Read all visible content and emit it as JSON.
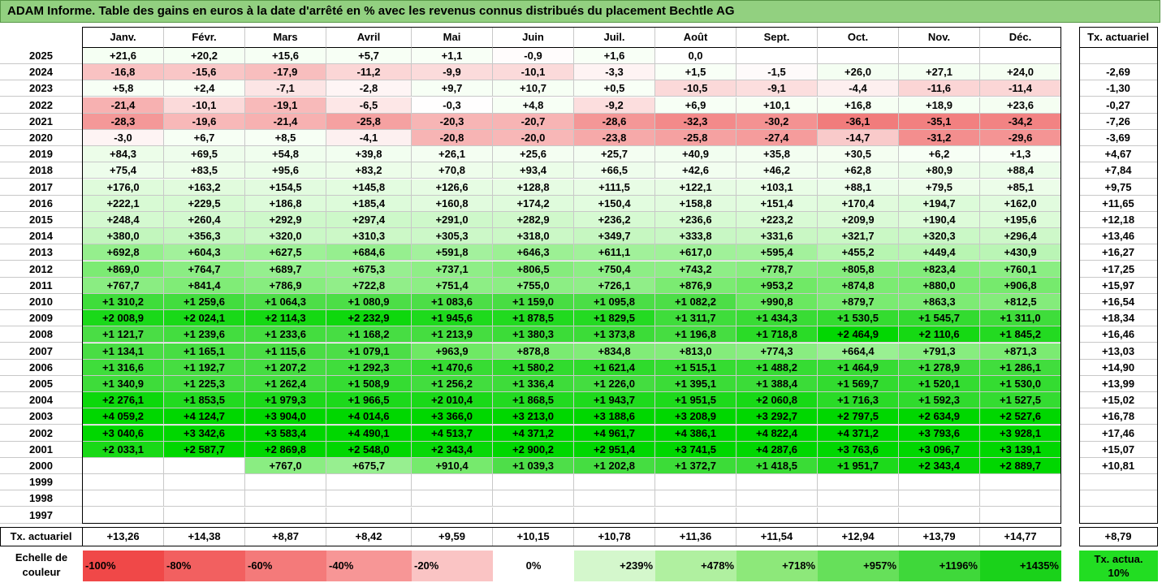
{
  "title": "ADAM Informe. Table des gains en euros à la date d'arrêté en % avec les revenus connus distribués du placement Bechtle AG",
  "months": [
    "Janv.",
    "Févr.",
    "Mars",
    "Avril",
    "Mai",
    "Juin",
    "Juil.",
    "Août",
    "Sept.",
    "Oct.",
    "Nov.",
    "Déc."
  ],
  "rate_header": "Tx. actuariel",
  "footer_label": "Tx. actuariel",
  "chart_data": {
    "type": "table",
    "rows": [
      {
        "year": "2025",
        "values": [
          "+21,6",
          "+20,2",
          "+15,6",
          "+5,7",
          "+1,1",
          "-0,9",
          "+1,6",
          "0,0",
          "",
          "",
          "",
          ""
        ],
        "rate": ""
      },
      {
        "year": "2024",
        "values": [
          "-16,8",
          "-15,6",
          "-17,9",
          "-11,2",
          "-9,9",
          "-10,1",
          "-3,3",
          "+1,5",
          "-1,5",
          "+26,0",
          "+27,1",
          "+24,0"
        ],
        "rate": "-2,69"
      },
      {
        "year": "2023",
        "values": [
          "+5,8",
          "+2,4",
          "-7,1",
          "-2,8",
          "+9,7",
          "+10,7",
          "+0,5",
          "-10,5",
          "-9,1",
          "-4,4",
          "-11,6",
          "-11,4"
        ],
        "rate": "-1,30"
      },
      {
        "year": "2022",
        "values": [
          "-21,4",
          "-10,1",
          "-19,1",
          "-6,5",
          "-0,3",
          "+4,8",
          "-9,2",
          "+6,9",
          "+10,1",
          "+16,8",
          "+18,9",
          "+23,6"
        ],
        "rate": "-0,27"
      },
      {
        "year": "2021",
        "values": [
          "-28,3",
          "-19,6",
          "-21,4",
          "-25,8",
          "-20,3",
          "-20,7",
          "-28,6",
          "-32,3",
          "-30,2",
          "-36,1",
          "-35,1",
          "-34,2"
        ],
        "rate": "-7,26"
      },
      {
        "year": "2020",
        "values": [
          "-3,0",
          "+6,7",
          "+8,5",
          "-4,1",
          "-20,8",
          "-20,0",
          "-23,8",
          "-25,8",
          "-27,4",
          "-14,7",
          "-31,2",
          "-29,6"
        ],
        "rate": "-3,69"
      },
      {
        "year": "2019",
        "values": [
          "+84,3",
          "+69,5",
          "+54,8",
          "+39,8",
          "+26,1",
          "+25,6",
          "+25,7",
          "+40,9",
          "+35,8",
          "+30,5",
          "+6,2",
          "+1,3"
        ],
        "rate": "+4,67"
      },
      {
        "year": "2018",
        "values": [
          "+75,4",
          "+83,5",
          "+95,6",
          "+83,2",
          "+70,8",
          "+93,4",
          "+66,5",
          "+42,6",
          "+46,2",
          "+62,8",
          "+80,9",
          "+88,4"
        ],
        "rate": "+7,84"
      },
      {
        "year": "2017",
        "values": [
          "+176,0",
          "+163,2",
          "+154,5",
          "+145,8",
          "+126,6",
          "+128,8",
          "+111,5",
          "+122,1",
          "+103,1",
          "+88,1",
          "+79,5",
          "+85,1"
        ],
        "rate": "+9,75"
      },
      {
        "year": "2016",
        "values": [
          "+222,1",
          "+229,5",
          "+186,8",
          "+185,4",
          "+160,8",
          "+174,2",
          "+150,4",
          "+158,8",
          "+151,4",
          "+170,4",
          "+194,7",
          "+162,0"
        ],
        "rate": "+11,65"
      },
      {
        "year": "2015",
        "values": [
          "+248,4",
          "+260,4",
          "+292,9",
          "+297,4",
          "+291,0",
          "+282,9",
          "+236,2",
          "+236,6",
          "+223,2",
          "+209,9",
          "+190,4",
          "+195,6"
        ],
        "rate": "+12,18"
      },
      {
        "year": "2014",
        "values": [
          "+380,0",
          "+356,3",
          "+320,0",
          "+310,3",
          "+305,3",
          "+318,0",
          "+349,7",
          "+333,8",
          "+331,6",
          "+321,7",
          "+320,3",
          "+296,4"
        ],
        "rate": "+13,46"
      },
      {
        "year": "2013",
        "values": [
          "+692,8",
          "+604,3",
          "+627,5",
          "+684,6",
          "+591,8",
          "+646,3",
          "+611,1",
          "+617,0",
          "+595,4",
          "+455,2",
          "+449,4",
          "+430,9"
        ],
        "rate": "+16,27"
      },
      {
        "year": "2012",
        "values": [
          "+869,0",
          "+764,7",
          "+689,7",
          "+675,3",
          "+737,1",
          "+806,5",
          "+750,4",
          "+743,2",
          "+778,7",
          "+805,8",
          "+823,4",
          "+760,1"
        ],
        "rate": "+17,25"
      },
      {
        "year": "2011",
        "values": [
          "+767,7",
          "+841,4",
          "+786,9",
          "+722,8",
          "+751,4",
          "+755,0",
          "+726,1",
          "+876,9",
          "+953,2",
          "+874,8",
          "+880,0",
          "+906,8"
        ],
        "rate": "+15,97"
      },
      {
        "year": "2010",
        "values": [
          "+1 310,2",
          "+1 259,6",
          "+1 064,3",
          "+1 080,9",
          "+1 083,6",
          "+1 159,0",
          "+1 095,8",
          "+1 082,2",
          "+990,8",
          "+879,7",
          "+863,3",
          "+812,5"
        ],
        "rate": "+16,54"
      },
      {
        "year": "2009",
        "values": [
          "+2 008,9",
          "+2 024,1",
          "+2 114,3",
          "+2 232,9",
          "+1 945,6",
          "+1 878,5",
          "+1 829,5",
          "+1 311,7",
          "+1 434,3",
          "+1 530,5",
          "+1 545,7",
          "+1 311,0"
        ],
        "rate": "+18,34"
      },
      {
        "year": "2008",
        "values": [
          "+1 121,7",
          "+1 239,6",
          "+1 233,6",
          "+1 168,2",
          "+1 213,9",
          "+1 380,3",
          "+1 373,8",
          "+1 196,8",
          "+1 718,8",
          "+2 464,9",
          "+2 110,6",
          "+1 845,2"
        ],
        "rate": "+16,46"
      },
      {
        "year": "2007",
        "values": [
          "+1 134,1",
          "+1 165,1",
          "+1 115,6",
          "+1 079,1",
          "+963,9",
          "+878,8",
          "+834,8",
          "+813,0",
          "+774,3",
          "+664,4",
          "+791,3",
          "+871,3"
        ],
        "rate": "+13,03"
      },
      {
        "year": "2006",
        "values": [
          "+1 316,6",
          "+1 192,7",
          "+1 207,2",
          "+1 292,3",
          "+1 470,6",
          "+1 580,2",
          "+1 621,4",
          "+1 515,1",
          "+1 488,2",
          "+1 464,9",
          "+1 278,9",
          "+1 286,1"
        ],
        "rate": "+14,90"
      },
      {
        "year": "2005",
        "values": [
          "+1 340,9",
          "+1 225,3",
          "+1 262,4",
          "+1 508,9",
          "+1 256,2",
          "+1 336,4",
          "+1 226,0",
          "+1 395,1",
          "+1 388,4",
          "+1 569,7",
          "+1 520,1",
          "+1 530,0"
        ],
        "rate": "+13,99"
      },
      {
        "year": "2004",
        "values": [
          "+2 276,1",
          "+1 853,5",
          "+1 979,3",
          "+1 966,5",
          "+2 010,4",
          "+1 868,5",
          "+1 943,7",
          "+1 951,5",
          "+2 060,8",
          "+1 716,3",
          "+1 592,3",
          "+1 527,5"
        ],
        "rate": "+15,02"
      },
      {
        "year": "2003",
        "values": [
          "+4 059,2",
          "+4 124,7",
          "+3 904,0",
          "+4 014,6",
          "+3 366,0",
          "+3 213,0",
          "+3 188,6",
          "+3 208,9",
          "+3 292,7",
          "+2 797,5",
          "+2 634,9",
          "+2 527,6"
        ],
        "rate": "+16,78"
      },
      {
        "year": "2002",
        "values": [
          "+3 040,6",
          "+3 342,6",
          "+3 583,4",
          "+4 490,1",
          "+4 513,7",
          "+4 371,2",
          "+4 961,7",
          "+4 386,1",
          "+4 822,4",
          "+4 371,2",
          "+3 793,6",
          "+3 928,1"
        ],
        "rate": "+17,46"
      },
      {
        "year": "2001",
        "values": [
          "+2 033,1",
          "+2 587,7",
          "+2 869,8",
          "+2 548,0",
          "+2 343,4",
          "+2 900,2",
          "+2 951,4",
          "+3 741,5",
          "+4 287,6",
          "+3 763,6",
          "+3 096,7",
          "+3 139,1"
        ],
        "rate": "+15,07"
      },
      {
        "year": "2000",
        "values": [
          "",
          "",
          "+767,0",
          "+675,7",
          "+910,4",
          "+1 039,3",
          "+1 202,8",
          "+1 372,7",
          "+1 418,5",
          "+1 951,7",
          "+2 343,4",
          "+2 889,7"
        ],
        "rate": "+10,81"
      },
      {
        "year": "1999",
        "values": [
          "",
          "",
          "",
          "",
          "",
          "",
          "",
          "",
          "",
          "",
          "",
          ""
        ],
        "rate": ""
      },
      {
        "year": "1998",
        "values": [
          "",
          "",
          "",
          "",
          "",
          "",
          "",
          "",
          "",
          "",
          "",
          ""
        ],
        "rate": ""
      },
      {
        "year": "1997",
        "values": [
          "",
          "",
          "",
          "",
          "",
          "",
          "",
          "",
          "",
          "",
          "",
          ""
        ],
        "rate": ""
      }
    ],
    "footer_values": [
      "+13,26",
      "+14,38",
      "+8,87",
      "+8,42",
      "+9,59",
      "+10,15",
      "+10,78",
      "+11,36",
      "+11,54",
      "+12,94",
      "+13,79",
      "+14,77"
    ],
    "footer_rate": "+8,79"
  },
  "scale": {
    "label": "Echelle de couleur",
    "items": [
      {
        "text": "-100%",
        "color": "#f04848",
        "align": "left"
      },
      {
        "text": "-80%",
        "color": "#f26060",
        "align": "left"
      },
      {
        "text": "-60%",
        "color": "#f47a7a",
        "align": "left"
      },
      {
        "text": "-40%",
        "color": "#f79696",
        "align": "left"
      },
      {
        "text": "-20%",
        "color": "#fac4c4",
        "align": "left"
      },
      {
        "text": "0%",
        "color": "#ffffff",
        "align": "center"
      },
      {
        "text": "+239%",
        "color": "#d4f7cc",
        "align": "right"
      },
      {
        "text": "+478%",
        "color": "#b0f0a0",
        "align": "right"
      },
      {
        "text": "+718%",
        "color": "#8de87a",
        "align": "right"
      },
      {
        "text": "+957%",
        "color": "#66e05a",
        "align": "right"
      },
      {
        "text": "+1196%",
        "color": "#3fd83a",
        "align": "right"
      },
      {
        "text": "+1435%",
        "color": "#1ad21a",
        "align": "right"
      }
    ],
    "rate_badge": "Tx. actua. 10%",
    "rate_badge_color": "#22dd22"
  }
}
